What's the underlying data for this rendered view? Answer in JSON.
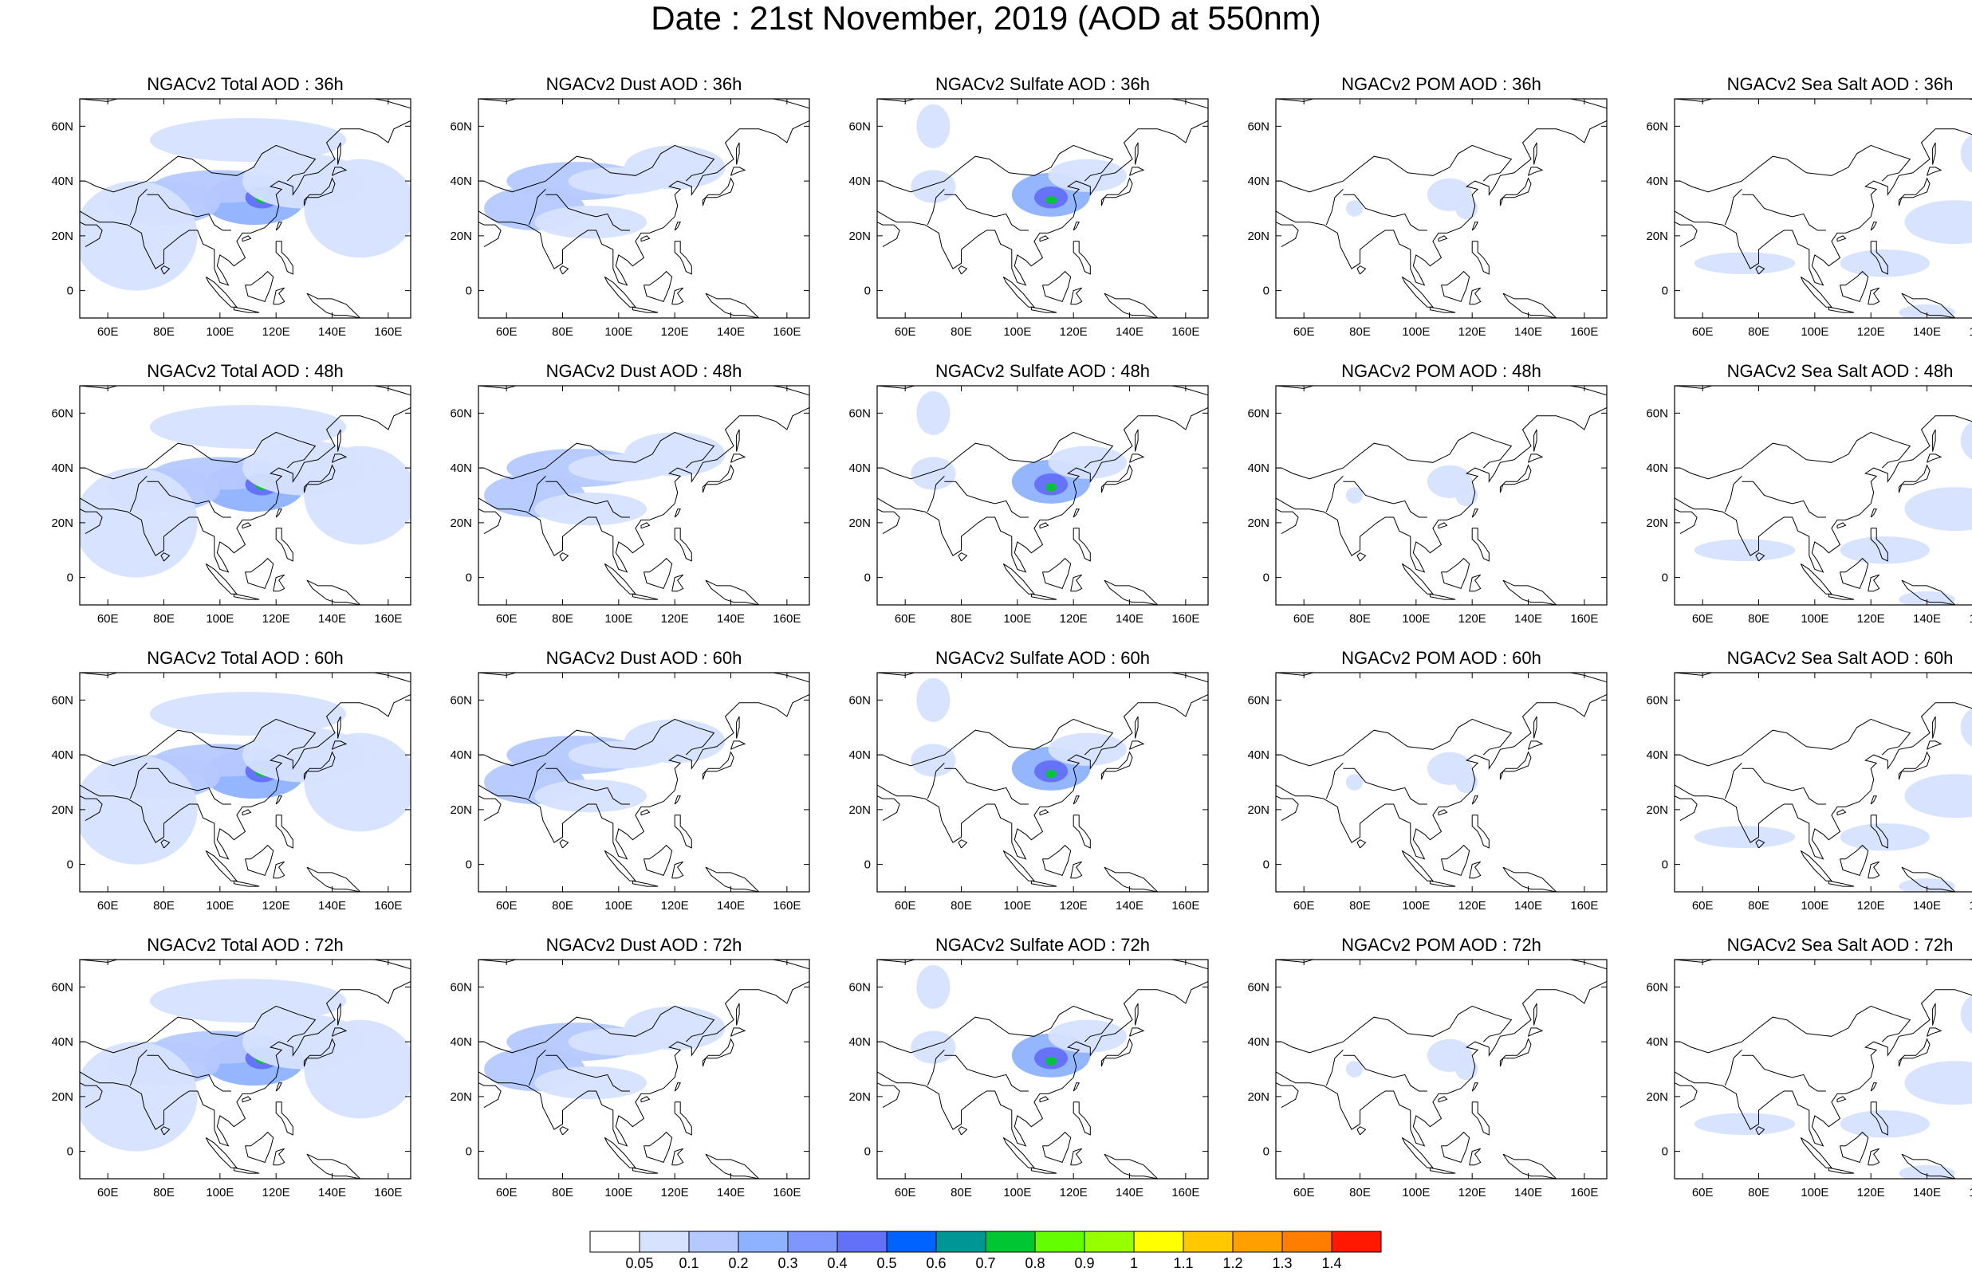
{
  "title": "Date : 21st November, 2019 (AOD at 550nm)",
  "map_axes": {
    "x_tick_labels": [
      "60E",
      "80E",
      "100E",
      "120E",
      "140E",
      "160E"
    ],
    "y_tick_labels": [
      "60N",
      "40N",
      "20N",
      "0"
    ],
    "lon_range": [
      50,
      168
    ],
    "lat_range": [
      -10,
      70
    ]
  },
  "rows": [
    {
      "forecast": "36h",
      "titles": [
        "NGACv2 Total AOD : 36h",
        "NGACv2 Dust AOD : 36h",
        "NGACv2 Sulfate AOD : 36h",
        "NGACv2 POM AOD : 36h",
        "NGACv2 Sea Salt AOD : 36h"
      ]
    },
    {
      "forecast": "48h",
      "titles": [
        "NGACv2 Total AOD : 48h",
        "NGACv2 Dust AOD : 48h",
        "NGACv2 Sulfate AOD : 48h",
        "NGACv2 POM AOD : 48h",
        "NGACv2 Sea Salt AOD : 48h"
      ]
    },
    {
      "forecast": "60h",
      "titles": [
        "NGACv2 Total AOD : 60h",
        "NGACv2 Dust AOD : 60h",
        "NGACv2 Sulfate AOD : 60h",
        "NGACv2 POM AOD : 60h",
        "NGACv2 Sea Salt AOD : 60h"
      ]
    },
    {
      "forecast": "72h",
      "titles": [
        "NGACv2 Total AOD : 72h",
        "NGACv2 Dust AOD : 72h",
        "NGACv2 Sulfate AOD : 72h",
        "NGACv2 POM AOD : 72h",
        "NGACv2 Sea Salt  AOD : 72h"
      ]
    }
  ],
  "colorbar": {
    "labels": [
      "0.05",
      "0.1",
      "0.2",
      "0.3",
      "0.4",
      "0.5",
      "0.6",
      "0.7",
      "0.8",
      "0.9",
      "1",
      "1.1",
      "1.2",
      "1.3",
      "1.4"
    ],
    "colors": [
      "#ffffff",
      "#d6e2ff",
      "#b5c9ff",
      "#8eb2ff",
      "#7f96ff",
      "#6370f8",
      "#0063ff",
      "#009696",
      "#00c633",
      "#63ff00",
      "#96ff00",
      "#ffff00",
      "#ffc800",
      "#ffa000",
      "#ff7d00",
      "#ff1900"
    ]
  }
}
